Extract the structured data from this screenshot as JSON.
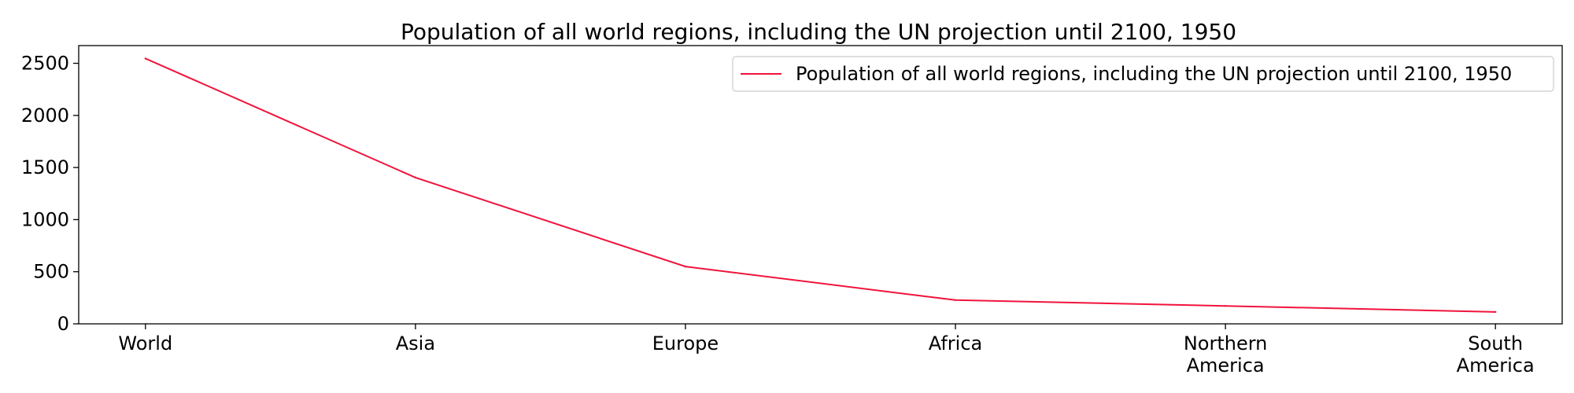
{
  "chart_data": {
    "type": "line",
    "title": "Population of all world regions, including the UN projection until 2100, 1950",
    "xlabel": "",
    "ylabel": "",
    "categories": [
      "World",
      "Asia",
      "Europe",
      "Africa",
      "Northern America",
      "South America"
    ],
    "category_lines": [
      [
        "World"
      ],
      [
        "Asia"
      ],
      [
        "Europe"
      ],
      [
        "Africa"
      ],
      [
        "Northern",
        "America"
      ],
      [
        "South",
        "America"
      ]
    ],
    "series": [
      {
        "name": "Population of all world regions, including the UN projection until 2100, 1950",
        "values": [
          2546,
          1404,
          550,
          228,
          172,
          114
        ],
        "color": "#f0143c"
      }
    ],
    "ylim": [
      0,
      2670
    ],
    "yticks": [
      0,
      500,
      1000,
      1500,
      2000,
      2500
    ],
    "grid": false,
    "legend_position": "top-right"
  }
}
